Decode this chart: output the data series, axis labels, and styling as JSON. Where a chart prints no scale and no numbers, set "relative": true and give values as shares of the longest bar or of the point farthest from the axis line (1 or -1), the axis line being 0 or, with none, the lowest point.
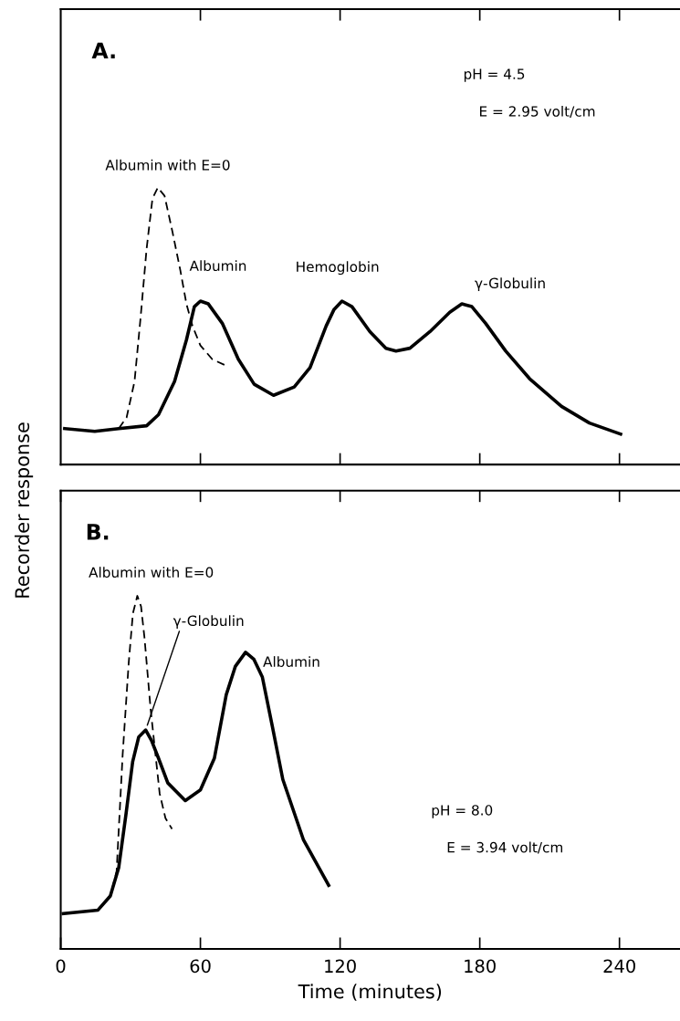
{
  "chart_data": [
    {
      "type": "line",
      "relative": true,
      "ylabel": "Recorder response",
      "xlim": [
        0,
        266
      ],
      "xticks": [
        {
          "value": 60,
          "label": null
        },
        {
          "value": 120,
          "label": null
        },
        {
          "value": 180,
          "label": null
        },
        {
          "value": 240,
          "label": null
        }
      ],
      "tick_labels": false,
      "grid": false,
      "legend": false,
      "marker": "none",
      "series": [
        {
          "color": "#000000",
          "line_style": "solid",
          "x": [
            1.7,
            14.6,
            24.9,
            36.9,
            42.0,
            48.9,
            54.0,
            57.4,
            60.0,
            63.4,
            69.4,
            76.3,
            83.1,
            91.4,
            100.3,
            107.1,
            114.0,
            117.4,
            120.8,
            125.1,
            132.8,
            139.7,
            144.0,
            150.0,
            158.6,
            167.1,
            172.3,
            176.6,
            182.5,
            191.1,
            201.4,
            215.1,
            227.1,
            240.5
          ],
          "values": [
            0.13,
            0.12,
            0.13,
            0.14,
            0.18,
            0.3,
            0.45,
            0.57,
            0.59,
            0.58,
            0.51,
            0.38,
            0.29,
            0.25,
            0.28,
            0.35,
            0.5,
            0.56,
            0.59,
            0.57,
            0.48,
            0.42,
            0.41,
            0.42,
            0.48,
            0.55,
            0.58,
            0.57,
            0.51,
            0.41,
            0.31,
            0.21,
            0.15,
            0.11
          ]
        },
        {
          "color": "#000000",
          "line_style": "dashed",
          "x": [
            24.9,
            28.3,
            31.7,
            34.3,
            36.9,
            39.4,
            41.7,
            44.6,
            48.0,
            51.4,
            54.0,
            56.6,
            60.0,
            65.1,
            70.3
          ],
          "values": [
            0.13,
            0.17,
            0.3,
            0.53,
            0.78,
            0.96,
            1.0,
            0.97,
            0.84,
            0.7,
            0.58,
            0.5,
            0.43,
            0.38,
            0.36
          ]
        }
      ],
      "annotations": [
        "A.",
        "pH = 4.5",
        "E = 2.95 volt/cm",
        "Albumin with E=0",
        {
          "text": "Albumin",
          "x": 60.0,
          "y": 0.59
        },
        {
          "text": "Hemoglobin",
          "x": 120.8,
          "y": 0.59
        },
        {
          "text": "γ-Globulin",
          "x": 172.3,
          "y": 0.58
        }
      ]
    },
    {
      "type": "line",
      "relative": true,
      "xlabel": "Time (minutes)",
      "xlim": [
        0,
        266
      ],
      "xticks": [
        0,
        60,
        120,
        180,
        240
      ],
      "tick_labels": "x",
      "grid": false,
      "legend": false,
      "marker": "none",
      "series": [
        {
          "color": "#000000",
          "line_style": "solid",
          "x": [
            1.1,
            16.0,
            21.3,
            24.9,
            28.0,
            30.9,
            33.5,
            36.5,
            39.0,
            42.0,
            46.0,
            53.5,
            60.0,
            66.0,
            71.1,
            75.0,
            79.4,
            83.0,
            86.6,
            90.9,
            95.4,
            104.2,
            115.1
          ],
          "values": [
            0.1,
            0.11,
            0.15,
            0.23,
            0.38,
            0.53,
            0.6,
            0.62,
            0.59,
            0.54,
            0.47,
            0.42,
            0.45,
            0.54,
            0.72,
            0.8,
            0.84,
            0.82,
            0.77,
            0.63,
            0.48,
            0.31,
            0.18
          ]
        },
        {
          "color": "#000000",
          "line_style": "dashed",
          "x": [
            16.0,
            21.3,
            24.0,
            26.6,
            29.2,
            31.0,
            32.9,
            34.5,
            36.0,
            38.6,
            42.5,
            45.0,
            47.8
          ],
          "values": [
            0.11,
            0.15,
            0.22,
            0.55,
            0.81,
            0.95,
            1.0,
            0.97,
            0.88,
            0.68,
            0.44,
            0.37,
            0.34
          ]
        }
      ],
      "annotations": [
        "B.",
        "Albumin with E=0",
        {
          "text": "γ-Globulin",
          "x": 36.5,
          "y": 0.62
        },
        {
          "text": "Albumin",
          "x": 79.4,
          "y": 0.84
        },
        "pH = 8.0",
        "E = 3.94 volt/cm"
      ]
    }
  ]
}
